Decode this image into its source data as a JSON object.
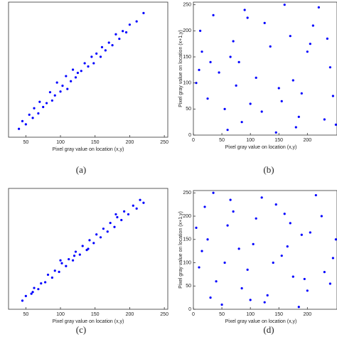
{
  "chart_data": [
    {
      "type": "scatter",
      "xlabel": "Pixel gray value on location (x,y)",
      "caption": "(a)",
      "color": "#0000ff",
      "xlim": [
        25,
        255
      ],
      "ylim": [
        25,
        235
      ],
      "xticks": [
        50,
        100,
        150,
        200,
        250
      ],
      "x": [
        40,
        45,
        50,
        55,
        60,
        62,
        68,
        70,
        75,
        80,
        85,
        88,
        92,
        95,
        100,
        103,
        108,
        110,
        115,
        118,
        122,
        125,
        130,
        135,
        140,
        145,
        148,
        152,
        158,
        160,
        165,
        170,
        175,
        180,
        185,
        190,
        195,
        200,
        210,
        220
      ],
      "values": [
        38,
        50,
        45,
        60,
        55,
        70,
        62,
        80,
        72,
        78,
        95,
        82,
        90,
        110,
        96,
        105,
        120,
        100,
        112,
        130,
        118,
        125,
        128,
        140,
        135,
        150,
        140,
        155,
        150,
        165,
        160,
        172,
        168,
        185,
        178,
        190,
        188,
        200,
        205,
        218
      ]
    },
    {
      "type": "scatter",
      "xlabel": "Pixel gray value on location (x,y)",
      "ylabel": "Pixel gray value on location (x+1,y)",
      "caption": "(b)",
      "color": "#0000ff",
      "xlim": [
        0,
        252
      ],
      "ylim": [
        0,
        255
      ],
      "xticks": [
        0,
        50,
        100,
        150,
        200
      ],
      "yticks": [
        0,
        50,
        100,
        150,
        200,
        250
      ],
      "x": [
        12,
        230,
        45,
        180,
        90,
        150,
        200,
        25,
        70,
        120,
        240,
        5,
        160,
        100,
        60,
        210,
        135,
        35,
        80,
        190,
        250,
        15,
        110,
        170,
        55,
        220,
        145,
        95,
        30,
        245,
        75,
        185,
        125,
        10,
        205,
        65,
        155,
        235,
        85,
        175
      ],
      "values": [
        200,
        30,
        120,
        15,
        240,
        90,
        160,
        70,
        180,
        45,
        130,
        100,
        250,
        60,
        10,
        210,
        170,
        230,
        140,
        80,
        20,
        160,
        110,
        190,
        50,
        245,
        5,
        225,
        140,
        75,
        95,
        35,
        215,
        125,
        175,
        150,
        65,
        185,
        25,
        105
      ]
    },
    {
      "type": "scatter",
      "xlabel": "Pixel gray value on location (x,y)",
      "caption": "(c)",
      "color": "#0000ff",
      "xlim": [
        25,
        255
      ],
      "ylim": [
        25,
        235
      ],
      "xticks": [
        50,
        100,
        150,
        200,
        250
      ],
      "x": [
        45,
        50,
        58,
        62,
        68,
        72,
        78,
        82,
        88,
        92,
        98,
        102,
        108,
        112,
        118,
        122,
        128,
        132,
        138,
        142,
        148,
        152,
        158,
        162,
        168,
        172,
        178,
        182,
        188,
        192,
        198,
        205,
        210,
        215,
        220,
        60,
        100,
        140,
        180,
        120
      ],
      "values": [
        40,
        48,
        52,
        62,
        60,
        70,
        72,
        85,
        80,
        92,
        90,
        105,
        100,
        112,
        110,
        125,
        120,
        135,
        128,
        145,
        140,
        155,
        150,
        165,
        160,
        175,
        168,
        185,
        180,
        195,
        190,
        205,
        200,
        215,
        210,
        55,
        110,
        130,
        190,
        118
      ]
    },
    {
      "type": "scatter",
      "xlabel": "Pixel gray value on location (x,y)",
      "ylabel": "Pixel gray value on location (x+1,y)",
      "caption": "(d)",
      "color": "#0000ff",
      "xlim": [
        0,
        252
      ],
      "ylim": [
        0,
        255
      ],
      "xticks": [
        0,
        50,
        100,
        150,
        200
      ],
      "yticks": [
        0,
        50,
        100,
        150,
        200,
        250
      ],
      "x": [
        200,
        20,
        140,
        60,
        250,
        100,
        35,
        175,
        80,
        225,
        10,
        120,
        190,
        50,
        155,
        240,
        70,
        130,
        5,
        95,
        215,
        165,
        40,
        110,
        185,
        25,
        245,
        145,
        85,
        205,
        15,
        65,
        230,
        125,
        170,
        55,
        195,
        105,
        30,
        160
      ],
      "values": [
        40,
        220,
        100,
        180,
        150,
        20,
        250,
        70,
        130,
        200,
        90,
        240,
        160,
        10,
        115,
        55,
        210,
        30,
        175,
        85,
        245,
        135,
        60,
        195,
        5,
        150,
        110,
        225,
        45,
        165,
        125,
        235,
        80,
        15,
        185,
        100,
        65,
        140,
        25,
        205
      ]
    }
  ]
}
